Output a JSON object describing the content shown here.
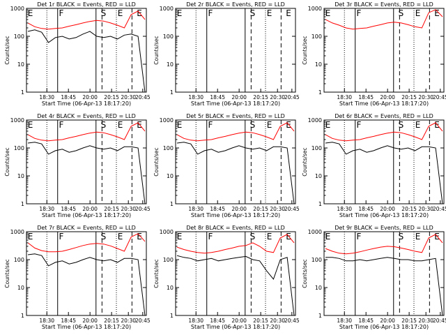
{
  "window": {
    "title": ""
  },
  "shared": {
    "xlabel": "Start Time (06-Apr-13 18:17:20)",
    "ylabel": "Counts/sec",
    "x_tick_labels": [
      "18:30",
      "18:45",
      "20:00",
      "20:15",
      "20:30",
      "20:45"
    ],
    "y_tick_labels": [
      "1",
      "10",
      "100",
      "1000"
    ],
    "ylim": [
      1,
      1000
    ],
    "y_scale": "log",
    "colors": {
      "events": "#000000",
      "lld": "#ff0000",
      "axes": "#000000"
    },
    "marker_labels": [
      "E",
      "F",
      "S",
      "E",
      "E"
    ]
  },
  "chart_data": [
    {
      "type": "line",
      "title": "Det 1r BLACK = Events, RED = LLD",
      "series": [
        {
          "name": "BLACK = Events",
          "values": [
            150,
            170,
            140,
            60,
            90,
            100,
            80,
            90,
            120,
            150,
            100,
            90,
            100,
            80,
            110,
            120,
            100,
            1
          ]
        },
        {
          "name": "RED = LLD",
          "values": [
            300,
            220,
            190,
            180,
            190,
            200,
            230,
            260,
            300,
            340,
            370,
            350,
            300,
            250,
            200,
            600,
            800,
            400
          ]
        }
      ]
    },
    {
      "type": "line",
      "title": "Det 2r BLACK = Events, RED = LLD",
      "series": []
    },
    {
      "type": "line",
      "title": "Det 3r BLACK = Events, RED = LLD",
      "series": [
        {
          "name": "RED = LLD",
          "values": [
            400,
            300,
            250,
            200,
            180,
            190,
            200,
            230,
            260,
            300,
            320,
            300,
            260,
            220,
            200,
            700,
            900,
            500
          ]
        }
      ]
    },
    {
      "type": "line",
      "title": "Det 4r BLACK = Events, RED = LLD",
      "series": [
        {
          "name": "BLACK = Events",
          "values": [
            150,
            160,
            140,
            60,
            80,
            90,
            70,
            80,
            100,
            120,
            100,
            90,
            100,
            80,
            110,
            110,
            100,
            1
          ]
        },
        {
          "name": "RED = LLD",
          "values": [
            300,
            220,
            190,
            180,
            190,
            200,
            230,
            260,
            300,
            340,
            370,
            350,
            300,
            250,
            200,
            600,
            800,
            400
          ]
        }
      ]
    },
    {
      "type": "line",
      "title": "Det 5r BLACK = Events, RED = LLD",
      "series": [
        {
          "name": "BLACK = Events",
          "values": [
            150,
            160,
            140,
            60,
            80,
            90,
            70,
            80,
            100,
            120,
            100,
            90,
            100,
            80,
            110,
            110,
            100,
            1
          ]
        },
        {
          "name": "RED = LLD",
          "values": [
            300,
            220,
            190,
            180,
            190,
            200,
            230,
            260,
            300,
            340,
            370,
            350,
            300,
            250,
            200,
            600,
            800,
            400
          ]
        }
      ]
    },
    {
      "type": "line",
      "title": "Det 6r BLACK = Events, RED = LLD",
      "series": [
        {
          "name": "BLACK = Events",
          "values": [
            150,
            160,
            140,
            60,
            80,
            90,
            70,
            80,
            100,
            120,
            100,
            90,
            100,
            80,
            110,
            110,
            100,
            1
          ]
        },
        {
          "name": "RED = LLD",
          "values": [
            300,
            220,
            190,
            180,
            190,
            200,
            230,
            260,
            300,
            340,
            370,
            350,
            300,
            250,
            200,
            600,
            800,
            400
          ]
        }
      ]
    },
    {
      "type": "line",
      "title": "Det 7r BLACK = Events, RED = LLD",
      "series": [
        {
          "name": "BLACK = Events",
          "values": [
            150,
            160,
            140,
            60,
            80,
            90,
            70,
            80,
            100,
            120,
            100,
            90,
            100,
            80,
            110,
            110,
            100,
            1
          ]
        },
        {
          "name": "RED = LLD",
          "values": [
            400,
            260,
            210,
            190,
            190,
            200,
            230,
            270,
            320,
            360,
            380,
            360,
            310,
            250,
            200,
            650,
            850,
            450
          ]
        }
      ]
    },
    {
      "type": "line",
      "title": "Det 8r BLACK = Events, RED = LLD",
      "series": [
        {
          "name": "BLACK = Events",
          "values": [
            140,
            120,
            110,
            90,
            100,
            110,
            90,
            100,
            110,
            120,
            130,
            100,
            90,
            40,
            20,
            100,
            120,
            1
          ]
        },
        {
          "name": "RED = LLD",
          "values": [
            280,
            230,
            200,
            180,
            170,
            180,
            200,
            230,
            260,
            300,
            320,
            400,
            300,
            200,
            180,
            600,
            800,
            400
          ]
        }
      ]
    },
    {
      "type": "line",
      "title": "Det 9r BLACK = Events, RED = LLD",
      "series": [
        {
          "name": "BLACK = Events",
          "values": [
            120,
            120,
            110,
            90,
            90,
            100,
            90,
            100,
            110,
            120,
            110,
            100,
            100,
            90,
            90,
            100,
            110,
            1
          ]
        },
        {
          "name": "RED = LLD",
          "values": [
            250,
            200,
            170,
            160,
            170,
            190,
            220,
            250,
            280,
            300,
            290,
            260,
            230,
            200,
            180,
            600,
            800,
            400
          ]
        }
      ]
    }
  ]
}
